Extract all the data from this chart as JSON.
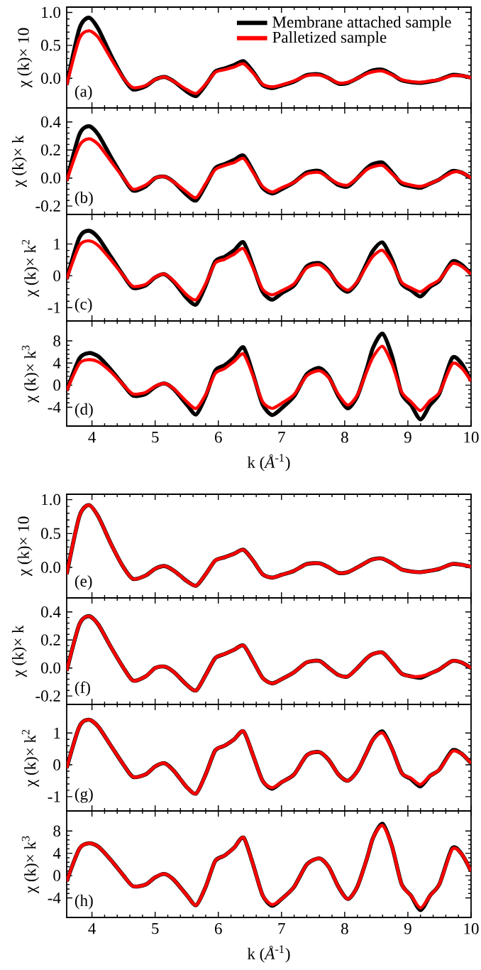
{
  "chart_data": [
    {
      "type": "line",
      "ylabel": "χ (k)× 10",
      "annotations": [
        "(a)"
      ],
      "legend": "top right",
      "tick_labels": "y",
      "xlim": [
        3.6,
        10
      ],
      "xticks": [
        4,
        5,
        6,
        7,
        8,
        9,
        10
      ],
      "ylim": [
        -0.45,
        1.08
      ],
      "yticks": [
        {
          "value": 0,
          "label": "0.0"
        },
        {
          "value": 0.5,
          "label": "0.5"
        },
        {
          "value": 1,
          "label": "1.0"
        }
      ],
      "x": [
        3.6,
        3.8,
        3.95,
        4.1,
        4.3,
        4.5,
        4.65,
        4.85,
        5.0,
        5.15,
        5.3,
        5.5,
        5.65,
        5.8,
        5.95,
        6.1,
        6.25,
        6.4,
        6.55,
        6.7,
        6.85,
        7.0,
        7.2,
        7.4,
        7.6,
        7.75,
        7.9,
        8.05,
        8.2,
        8.35,
        8.45,
        8.6,
        8.75,
        8.9,
        9.05,
        9.2,
        9.35,
        9.5,
        9.7,
        9.85,
        10.0
      ],
      "series": [
        {
          "name": "Membrane attached sample",
          "color": "#000000",
          "values": [
            -0.1,
            0.75,
            0.92,
            0.75,
            0.35,
            0.0,
            -0.17,
            -0.12,
            -0.02,
            0.02,
            -0.05,
            -0.2,
            -0.27,
            -0.1,
            0.1,
            0.15,
            0.2,
            0.26,
            0.1,
            -0.1,
            -0.15,
            -0.11,
            -0.05,
            0.05,
            0.06,
            0.0,
            -0.08,
            -0.07,
            0.0,
            0.08,
            0.12,
            0.13,
            0.06,
            -0.03,
            -0.06,
            -0.07,
            -0.05,
            -0.02,
            0.05,
            0.04,
            0.01
          ]
        },
        {
          "name": "Palletized sample",
          "color": "#ff0000",
          "values": [
            -0.1,
            0.6,
            0.72,
            0.62,
            0.3,
            0.0,
            -0.14,
            -0.11,
            -0.02,
            0.02,
            -0.05,
            -0.17,
            -0.23,
            -0.09,
            0.09,
            0.13,
            0.17,
            0.22,
            0.08,
            -0.09,
            -0.13,
            -0.1,
            -0.04,
            0.04,
            0.05,
            0.0,
            -0.07,
            -0.06,
            0.0,
            0.07,
            0.1,
            0.11,
            0.05,
            -0.02,
            -0.05,
            -0.06,
            -0.04,
            -0.02,
            0.04,
            0.04,
            0.01
          ]
        }
      ]
    },
    {
      "type": "line",
      "ylabel": "χ (k)× k",
      "annotations": [
        "(b)"
      ],
      "tick_labels": "y",
      "xlim": [
        3.6,
        10
      ],
      "xticks": [
        4,
        5,
        6,
        7,
        8,
        9,
        10
      ],
      "ylim": [
        -0.26,
        0.5
      ],
      "yticks": [
        {
          "value": -0.2,
          "label": "-0.2"
        },
        {
          "value": 0,
          "label": "0.0"
        },
        {
          "value": 0.2,
          "label": "0.2"
        },
        {
          "value": 0.4,
          "label": "0.4"
        }
      ],
      "x": [
        3.6,
        3.8,
        3.95,
        4.1,
        4.3,
        4.5,
        4.65,
        4.85,
        5.0,
        5.15,
        5.3,
        5.5,
        5.65,
        5.8,
        5.95,
        6.1,
        6.25,
        6.4,
        6.55,
        6.7,
        6.85,
        7.0,
        7.2,
        7.4,
        7.6,
        7.75,
        7.9,
        8.05,
        8.2,
        8.35,
        8.45,
        8.6,
        8.75,
        8.9,
        9.05,
        9.2,
        9.35,
        9.5,
        9.7,
        9.85,
        10.0
      ],
      "series": [
        {
          "color": "#000000",
          "values": [
            -0.02,
            0.31,
            0.37,
            0.31,
            0.15,
            0.0,
            -0.09,
            -0.06,
            0.0,
            0.01,
            -0.03,
            -0.12,
            -0.16,
            -0.05,
            0.07,
            0.1,
            0.13,
            0.16,
            0.05,
            -0.07,
            -0.11,
            -0.08,
            -0.03,
            0.04,
            0.05,
            0.0,
            -0.05,
            -0.06,
            0.0,
            0.07,
            0.1,
            0.11,
            0.04,
            -0.04,
            -0.06,
            -0.07,
            -0.04,
            -0.01,
            0.05,
            0.04,
            0.0
          ]
        },
        {
          "color": "#ff0000",
          "values": [
            -0.02,
            0.23,
            0.28,
            0.24,
            0.12,
            0.0,
            -0.08,
            -0.05,
            0.0,
            0.01,
            -0.03,
            -0.1,
            -0.14,
            -0.04,
            0.06,
            0.09,
            0.11,
            0.14,
            0.04,
            -0.06,
            -0.1,
            -0.07,
            -0.03,
            0.03,
            0.04,
            0.0,
            -0.04,
            -0.05,
            0.0,
            0.06,
            0.08,
            0.09,
            0.03,
            -0.03,
            -0.05,
            -0.06,
            -0.04,
            -0.01,
            0.04,
            0.04,
            0.0
          ]
        }
      ]
    },
    {
      "type": "line",
      "ylabel": "χ (k)× k$^{2}$",
      "annotations": [
        "(c)"
      ],
      "tick_labels": "y",
      "xlim": [
        3.6,
        10
      ],
      "xticks": [
        4,
        5,
        6,
        7,
        8,
        9,
        10
      ],
      "ylim": [
        -1.42,
        1.93
      ],
      "yticks": [
        -1,
        0,
        1
      ],
      "x": [
        3.6,
        3.8,
        3.95,
        4.1,
        4.3,
        4.5,
        4.65,
        4.85,
        5.0,
        5.15,
        5.3,
        5.5,
        5.65,
        5.8,
        5.95,
        6.1,
        6.25,
        6.4,
        6.55,
        6.7,
        6.85,
        7.0,
        7.2,
        7.4,
        7.6,
        7.75,
        7.9,
        8.05,
        8.2,
        8.35,
        8.45,
        8.6,
        8.75,
        8.9,
        9.05,
        9.2,
        9.35,
        9.5,
        9.7,
        9.85,
        10.0
      ],
      "series": [
        {
          "color": "#000000",
          "values": [
            -0.1,
            1.2,
            1.42,
            1.2,
            0.6,
            0.0,
            -0.38,
            -0.3,
            -0.05,
            0.05,
            -0.2,
            -0.7,
            -0.9,
            -0.3,
            0.45,
            0.6,
            0.8,
            1.05,
            0.3,
            -0.5,
            -0.75,
            -0.55,
            -0.3,
            0.3,
            0.4,
            0.15,
            -0.3,
            -0.5,
            -0.2,
            0.4,
            0.8,
            1.05,
            0.5,
            -0.25,
            -0.45,
            -0.65,
            -0.35,
            -0.15,
            0.45,
            0.35,
            0.05
          ]
        },
        {
          "color": "#ff0000",
          "values": [
            -0.1,
            0.95,
            1.1,
            0.95,
            0.5,
            0.0,
            -0.33,
            -0.27,
            -0.04,
            0.05,
            -0.17,
            -0.6,
            -0.75,
            -0.25,
            0.4,
            0.52,
            0.68,
            0.85,
            0.25,
            -0.42,
            -0.6,
            -0.47,
            -0.25,
            0.25,
            0.35,
            0.12,
            -0.25,
            -0.45,
            -0.18,
            0.32,
            0.62,
            0.8,
            0.4,
            -0.2,
            -0.38,
            -0.5,
            -0.3,
            -0.12,
            0.38,
            0.3,
            0.05
          ]
        }
      ]
    },
    {
      "type": "line",
      "ylabel": "χ (k)× k$^{3}$",
      "xlabel": "k (*Å*$^{-1}$)",
      "annotations": [
        "(d)"
      ],
      "xlim": [
        3.6,
        10
      ],
      "xticks": [
        4,
        5,
        6,
        7,
        8,
        9,
        10
      ],
      "ylim": [
        -7.4,
        11.6
      ],
      "yticks": [
        -4,
        0,
        4,
        8
      ],
      "x": [
        3.6,
        3.8,
        3.95,
        4.1,
        4.3,
        4.5,
        4.65,
        4.85,
        5.0,
        5.15,
        5.3,
        5.5,
        5.65,
        5.8,
        5.95,
        6.1,
        6.25,
        6.4,
        6.55,
        6.7,
        6.85,
        7.0,
        7.2,
        7.4,
        7.6,
        7.75,
        7.9,
        8.05,
        8.2,
        8.35,
        8.45,
        8.6,
        8.75,
        8.9,
        9.05,
        9.2,
        9.35,
        9.5,
        9.7,
        9.85,
        10.0
      ],
      "series": [
        {
          "color": "#000000",
          "values": [
            -1,
            4.8,
            5.8,
            5.2,
            2.8,
            0,
            -1.9,
            -1.6,
            -0.3,
            0.3,
            -0.8,
            -3.5,
            -5.3,
            -2,
            2.6,
            3.6,
            5,
            6.8,
            2,
            -3.5,
            -5.4,
            -4.2,
            -2,
            2,
            3.1,
            1.5,
            -2,
            -4.2,
            -2,
            3,
            6.8,
            9.3,
            5.2,
            -1.5,
            -3.6,
            -6.2,
            -3.6,
            -1.5,
            4.9,
            3.9,
            0.8
          ]
        },
        {
          "color": "#ff0000",
          "values": [
            -1,
            3.9,
            4.6,
            4.2,
            2.4,
            0,
            -1.6,
            -1.3,
            -0.2,
            0.3,
            -0.7,
            -3,
            -4.2,
            -1.7,
            2.1,
            3,
            4.3,
            5.6,
            1.7,
            -3,
            -4.2,
            -3.3,
            -1.7,
            1.7,
            2.6,
            1.3,
            -1.7,
            -3.6,
            -1.8,
            2.5,
            5.1,
            7.0,
            3.8,
            -1.2,
            -3,
            -4.6,
            -2.8,
            -1.3,
            3.8,
            3.1,
            0.7
          ]
        }
      ]
    },
    {
      "type": "line",
      "ylabel": "χ (k)× 10",
      "annotations": [
        "(e)"
      ],
      "tick_labels": "y",
      "xlim": [
        3.6,
        10
      ],
      "xticks": [
        4,
        5,
        6,
        7,
        8,
        9,
        10
      ],
      "ylim": [
        -0.45,
        1.08
      ],
      "yticks": [
        {
          "value": 0,
          "label": "0.0"
        },
        {
          "value": 0.5,
          "label": "0.5"
        },
        {
          "value": 1,
          "label": "1.0"
        }
      ],
      "x": [
        3.6,
        3.8,
        3.95,
        4.1,
        4.3,
        4.5,
        4.65,
        4.85,
        5.0,
        5.15,
        5.3,
        5.5,
        5.65,
        5.8,
        5.95,
        6.1,
        6.25,
        6.4,
        6.55,
        6.7,
        6.85,
        7.0,
        7.2,
        7.4,
        7.6,
        7.75,
        7.9,
        8.05,
        8.2,
        8.35,
        8.45,
        8.6,
        8.75,
        8.9,
        9.05,
        9.2,
        9.35,
        9.5,
        9.7,
        9.85,
        10.0
      ],
      "series": [
        {
          "color": "#000000",
          "values": [
            -0.1,
            0.75,
            0.92,
            0.75,
            0.35,
            0.0,
            -0.17,
            -0.12,
            -0.02,
            0.02,
            -0.05,
            -0.2,
            -0.27,
            -0.1,
            0.1,
            0.15,
            0.2,
            0.26,
            0.1,
            -0.1,
            -0.15,
            -0.11,
            -0.05,
            0.05,
            0.06,
            0.0,
            -0.08,
            -0.07,
            0.0,
            0.08,
            0.12,
            0.13,
            0.06,
            -0.03,
            -0.06,
            -0.07,
            -0.05,
            -0.02,
            0.05,
            0.04,
            0.01
          ]
        },
        {
          "color": "#ff0000",
          "values": [
            -0.1,
            0.75,
            0.92,
            0.75,
            0.35,
            0.0,
            -0.17,
            -0.12,
            -0.02,
            0.02,
            -0.05,
            -0.2,
            -0.27,
            -0.1,
            0.1,
            0.15,
            0.2,
            0.26,
            0.1,
            -0.1,
            -0.15,
            -0.11,
            -0.05,
            0.05,
            0.06,
            0.0,
            -0.08,
            -0.07,
            0.0,
            0.08,
            0.12,
            0.13,
            0.06,
            -0.03,
            -0.06,
            -0.07,
            -0.05,
            -0.02,
            0.05,
            0.04,
            0.01
          ]
        }
      ]
    },
    {
      "type": "line",
      "ylabel": "χ (k)× k",
      "annotations": [
        "(f)"
      ],
      "tick_labels": "y",
      "xlim": [
        3.6,
        10
      ],
      "xticks": [
        4,
        5,
        6,
        7,
        8,
        9,
        10
      ],
      "ylim": [
        -0.26,
        0.5
      ],
      "yticks": [
        {
          "value": -0.2,
          "label": "-0.2"
        },
        {
          "value": 0,
          "label": "0.0"
        },
        {
          "value": 0.2,
          "label": "0.2"
        },
        {
          "value": 0.4,
          "label": "0.4"
        }
      ],
      "x": [
        3.6,
        3.8,
        3.95,
        4.1,
        4.3,
        4.5,
        4.65,
        4.85,
        5.0,
        5.15,
        5.3,
        5.5,
        5.65,
        5.8,
        5.95,
        6.1,
        6.25,
        6.4,
        6.55,
        6.7,
        6.85,
        7.0,
        7.2,
        7.4,
        7.6,
        7.75,
        7.9,
        8.05,
        8.2,
        8.35,
        8.45,
        8.6,
        8.75,
        8.9,
        9.05,
        9.2,
        9.35,
        9.5,
        9.7,
        9.85,
        10.0
      ],
      "series": [
        {
          "color": "#000000",
          "values": [
            -0.02,
            0.31,
            0.37,
            0.31,
            0.15,
            0.0,
            -0.09,
            -0.06,
            0.0,
            0.01,
            -0.03,
            -0.12,
            -0.16,
            -0.05,
            0.07,
            0.1,
            0.13,
            0.16,
            0.05,
            -0.07,
            -0.11,
            -0.08,
            -0.03,
            0.04,
            0.05,
            0.0,
            -0.05,
            -0.06,
            0.0,
            0.07,
            0.1,
            0.11,
            0.04,
            -0.04,
            -0.06,
            -0.07,
            -0.04,
            -0.01,
            0.05,
            0.04,
            0.0
          ]
        },
        {
          "color": "#ff0000",
          "values": [
            -0.02,
            0.31,
            0.37,
            0.31,
            0.15,
            0.0,
            -0.09,
            -0.06,
            0.0,
            0.01,
            -0.03,
            -0.12,
            -0.16,
            -0.05,
            0.07,
            0.1,
            0.13,
            0.16,
            0.05,
            -0.07,
            -0.11,
            -0.08,
            -0.03,
            0.04,
            0.05,
            0.0,
            -0.05,
            -0.06,
            0.0,
            0.07,
            0.1,
            0.11,
            0.04,
            -0.04,
            -0.06,
            -0.06,
            -0.04,
            -0.01,
            0.05,
            0.04,
            0.0
          ]
        }
      ]
    },
    {
      "type": "line",
      "ylabel": "χ (k)× k$^{2}$",
      "annotations": [
        "(g)"
      ],
      "tick_labels": "y",
      "xlim": [
        3.6,
        10
      ],
      "xticks": [
        4,
        5,
        6,
        7,
        8,
        9,
        10
      ],
      "ylim": [
        -1.45,
        1.9
      ],
      "yticks": [
        -1,
        0,
        1
      ],
      "x": [
        3.6,
        3.8,
        3.95,
        4.1,
        4.3,
        4.5,
        4.65,
        4.85,
        5.0,
        5.15,
        5.3,
        5.5,
        5.65,
        5.8,
        5.95,
        6.1,
        6.25,
        6.4,
        6.55,
        6.7,
        6.85,
        7.0,
        7.2,
        7.4,
        7.6,
        7.75,
        7.9,
        8.05,
        8.2,
        8.35,
        8.45,
        8.6,
        8.75,
        8.9,
        9.05,
        9.2,
        9.35,
        9.5,
        9.7,
        9.85,
        10.0
      ],
      "series": [
        {
          "color": "#000000",
          "values": [
            -0.1,
            1.2,
            1.42,
            1.2,
            0.6,
            0.0,
            -0.38,
            -0.3,
            -0.05,
            0.05,
            -0.2,
            -0.7,
            -0.9,
            -0.3,
            0.45,
            0.6,
            0.8,
            1.05,
            0.3,
            -0.5,
            -0.75,
            -0.55,
            -0.3,
            0.3,
            0.4,
            0.15,
            -0.3,
            -0.5,
            -0.2,
            0.4,
            0.8,
            1.05,
            0.5,
            -0.25,
            -0.45,
            -0.68,
            -0.35,
            -0.15,
            0.45,
            0.35,
            0.05
          ]
        },
        {
          "color": "#ff0000",
          "values": [
            -0.1,
            1.2,
            1.42,
            1.2,
            0.6,
            0.0,
            -0.38,
            -0.3,
            -0.05,
            0.05,
            -0.2,
            -0.7,
            -0.9,
            -0.3,
            0.45,
            0.6,
            0.8,
            1.05,
            0.3,
            -0.5,
            -0.72,
            -0.55,
            -0.3,
            0.3,
            0.4,
            0.15,
            -0.3,
            -0.5,
            -0.2,
            0.4,
            0.8,
            1.0,
            0.5,
            -0.25,
            -0.42,
            -0.62,
            -0.35,
            -0.15,
            0.42,
            0.35,
            0.05
          ]
        }
      ]
    },
    {
      "type": "line",
      "ylabel": "χ (k)× k$^{3}$",
      "xlabel": "k (*Å*$^{-1}$)",
      "annotations": [
        "(h)"
      ],
      "xlim": [
        3.6,
        10
      ],
      "xticks": [
        4,
        5,
        6,
        7,
        8,
        9,
        10
      ],
      "ylim": [
        -7.5,
        11.6
      ],
      "yticks": [
        -4,
        0,
        4,
        8
      ],
      "x": [
        3.6,
        3.8,
        3.95,
        4.1,
        4.3,
        4.5,
        4.65,
        4.85,
        5.0,
        5.15,
        5.3,
        5.5,
        5.65,
        5.8,
        5.95,
        6.1,
        6.25,
        6.4,
        6.55,
        6.7,
        6.85,
        7.0,
        7.2,
        7.4,
        7.6,
        7.75,
        7.9,
        8.05,
        8.2,
        8.35,
        8.45,
        8.6,
        8.75,
        8.9,
        9.05,
        9.2,
        9.35,
        9.5,
        9.7,
        9.85,
        10.0
      ],
      "series": [
        {
          "color": "#000000",
          "values": [
            -1,
            4.8,
            5.8,
            5.2,
            2.8,
            0,
            -1.9,
            -1.6,
            -0.3,
            0.3,
            -0.8,
            -3.5,
            -5.3,
            -2,
            2.6,
            3.6,
            5,
            6.8,
            2,
            -3.5,
            -5.4,
            -4.2,
            -2,
            2,
            3.1,
            1.5,
            -2,
            -4.2,
            -2,
            3,
            6.8,
            9.3,
            5.2,
            -1.5,
            -3.6,
            -6.2,
            -3.6,
            -1.5,
            4.9,
            3.9,
            0.8
          ]
        },
        {
          "color": "#ff0000",
          "values": [
            -1,
            4.8,
            5.8,
            5.2,
            2.8,
            0,
            -1.9,
            -1.6,
            -0.3,
            0.3,
            -0.8,
            -3.5,
            -5.3,
            -2,
            2.6,
            3.6,
            5,
            6.8,
            2,
            -3.5,
            -5.2,
            -4.2,
            -2,
            2,
            3.1,
            1.5,
            -2,
            -4.2,
            -2,
            3,
            6.8,
            9.0,
            5.2,
            -1.5,
            -3.6,
            -5.8,
            -3.6,
            -1.5,
            4.7,
            3.9,
            0.8
          ]
        }
      ]
    }
  ]
}
